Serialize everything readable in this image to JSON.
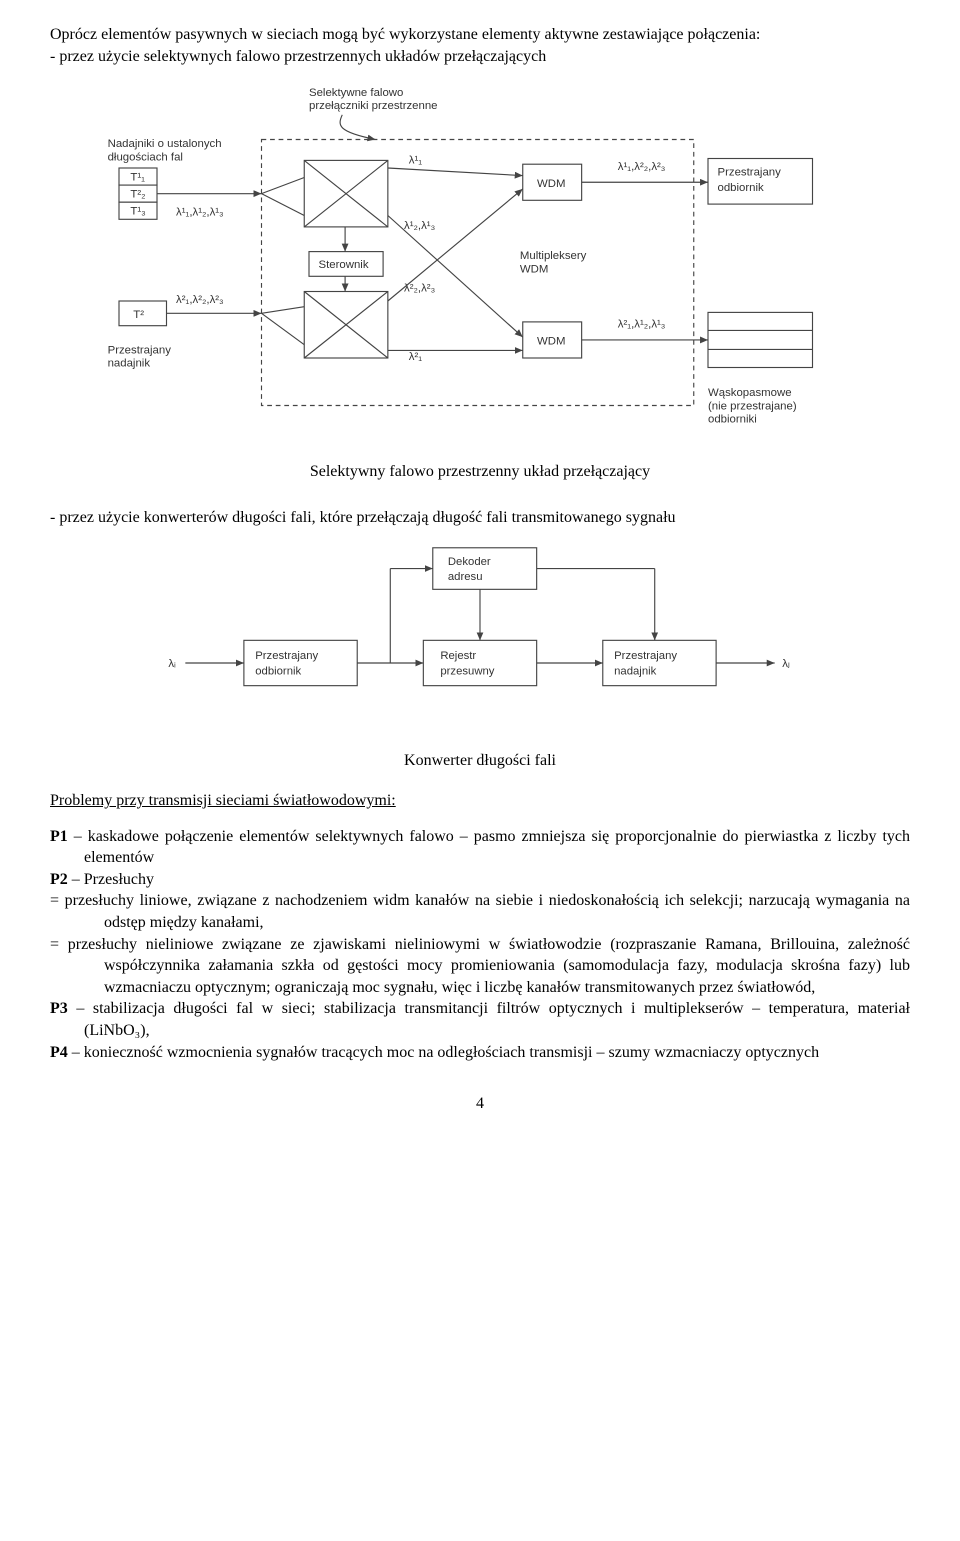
{
  "intro": {
    "l1": "Oprócz elementów pasywnych w sieciach mogą być wykorzystane elementy aktywne zestawiające połączenia:",
    "l2": "- przez użycie selektywnych falowo przestrzennych układów przełączających"
  },
  "fig1": {
    "caption": "Selektywny falowo przestrzenny układ przełączający",
    "t_title": "Selektywne falowo\nprzełączniki przestrzenne",
    "tx_title": "Nadajniki o ustalonych\ndługościach fal",
    "t11": "T¹₁",
    "t12": "T²₂",
    "t13": "T¹₃",
    "lamA": "λ¹₁,λ¹₂,λ¹₃",
    "t2": "T²",
    "lamB": "λ²₁,λ²₂,λ²₃",
    "rxA": "Przestrajany\nnadajnik",
    "sterownik": "Sterownik",
    "wdm": "WDM",
    "mux": "Multipleksery\nWDM",
    "l11_top": "λ¹₁",
    "l12_13": "λ¹₂,λ¹₃",
    "l22_23": "λ²₂,λ²₃",
    "l21_bot": "λ²₁",
    "out_top": "λ¹₁,λ²₂,λ²₃",
    "out_bot": "λ²₁,λ¹₂,λ¹₃",
    "rx_tune": "Przestrajany\nodbiornik",
    "rx_narrow": "Wąskopasmowe\n(nie przestrajane)\nodbiorniki"
  },
  "mid": {
    "l1": "- przez użycie konwerterów długości fali, które przełączają długość fali transmitowanego sygnału"
  },
  "fig2": {
    "caption": "Konwerter długości fali",
    "li": "λᵢ",
    "lj": "λⱼ",
    "rx": "Przestrajany\nodbiornik",
    "reg": "Rejestr\nprzesuwny",
    "tx": "Przestrajany\nnadajnik",
    "dec": "Dekoder\nadresu"
  },
  "problems_title": "Problemy przy transmisji sieciami światłowodowymi:",
  "P1": "P1 – kaskadowe połączenie elementów selektywnych falowo – pasmo zmniejsza się proporcjonalnie do pierwiastka z liczby tych elementów",
  "P2": "P2 – Przesłuchy",
  "eq1": "= przesłuchy liniowe, związane z nachodzeniem widm kanałów na siebie i niedoskonałością ich selekcji; narzucają wymagania na odstęp między kanałami,",
  "eq2": "= przesłuchy nieliniowe związane ze zjawiskami nieliniowymi w światłowodzie (rozpraszanie Ramana, Brillouina, zależność współczynnika załamania szkła od gęstości mocy promieniowania (samomodulacja fazy, modulacja skrośna fazy) lub wzmacniaczu optycznym; ograniczają moc sygnału, więc i liczbę kanałów transmitowanych przez światłowód,",
  "P3": "P3 – stabilizacja długości fal w sieci; stabilizacja transmitancji filtrów optycznych i multiplekserów – temperatura, materiał (LiNbO₃),",
  "P4": "P4 – konieczność wzmocnienia sygnałów tracących moc na odległościach transmisji – szumy wzmacniaczy optycznych",
  "pagenum": "4"
}
